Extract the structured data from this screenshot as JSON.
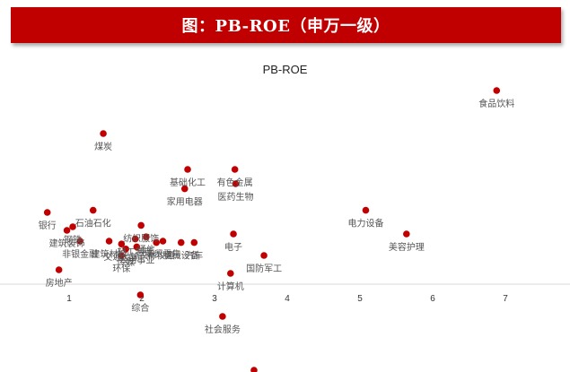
{
  "header": {
    "title": "图：PB-ROE（申万一级）"
  },
  "chart_data": {
    "type": "scatter",
    "title": "PB-ROE",
    "xlabel": "",
    "ylabel": "",
    "x_ticks": [
      "1",
      "2",
      "3",
      "4",
      "5",
      "6",
      "7"
    ],
    "xlim": [
      0.2,
      7.9
    ],
    "ylim": [
      -12,
      31
    ],
    "grid": false,
    "accent_color": "#c00000",
    "points": [
      {
        "label": "食品饮料",
        "x": 6.88,
        "y": 27.0
      },
      {
        "label": "煤炭",
        "x": 1.47,
        "y": 21.0
      },
      {
        "label": "基础化工",
        "x": 2.63,
        "y": 16.0
      },
      {
        "label": "有色金属",
        "x": 3.28,
        "y": 16.0
      },
      {
        "label": "家用电器",
        "x": 2.59,
        "y": 13.3
      },
      {
        "label": "医药生物",
        "x": 3.29,
        "y": 14.0
      },
      {
        "label": "银行",
        "x": 0.7,
        "y": 10.0
      },
      {
        "label": "石油石化",
        "x": 1.33,
        "y": 10.3
      },
      {
        "label": "电力设备",
        "x": 5.08,
        "y": 10.3
      },
      {
        "label": "钢铁",
        "x": 1.05,
        "y": 8.0
      },
      {
        "label": "纺织服饰",
        "x": 1.99,
        "y": 8.2
      },
      {
        "label": "建筑装饰",
        "x": 0.97,
        "y": 7.5
      },
      {
        "label": "美容护理",
        "x": 5.64,
        "y": 7.0
      },
      {
        "label": "电子",
        "x": 3.26,
        "y": 7.0
      },
      {
        "label": "非银金融",
        "x": 1.15,
        "y": 6.0
      },
      {
        "label": "建筑材料",
        "x": 1.55,
        "y": 6.0
      },
      {
        "label": "轻工制造",
        "x": 1.91,
        "y": 6.3
      },
      {
        "label": "通信",
        "x": 2.06,
        "y": 6.6
      },
      {
        "label": "交通运输",
        "x": 1.72,
        "y": 5.6
      },
      {
        "label": "农林牧渔",
        "x": 2.2,
        "y": 5.8
      },
      {
        "label": "商贸零售",
        "x": 2.29,
        "y": 6.0
      },
      {
        "label": "机械设备",
        "x": 2.54,
        "y": 5.8
      },
      {
        "label": "汽车",
        "x": 2.72,
        "y": 5.8
      },
      {
        "label": "公用事业",
        "x": 1.93,
        "y": 5.2
      },
      {
        "label": "传媒",
        "x": 1.78,
        "y": 4.9
      },
      {
        "label": "环保",
        "x": 1.72,
        "y": 4.0
      },
      {
        "label": "国防军工",
        "x": 3.68,
        "y": 4.0
      },
      {
        "label": "房地产",
        "x": 0.86,
        "y": 2.0
      },
      {
        "label": "计算机",
        "x": 3.22,
        "y": 1.5
      },
      {
        "label": "综合",
        "x": 1.98,
        "y": -1.5
      },
      {
        "label": "社会服务",
        "x": 3.11,
        "y": -4.5
      }
    ]
  }
}
